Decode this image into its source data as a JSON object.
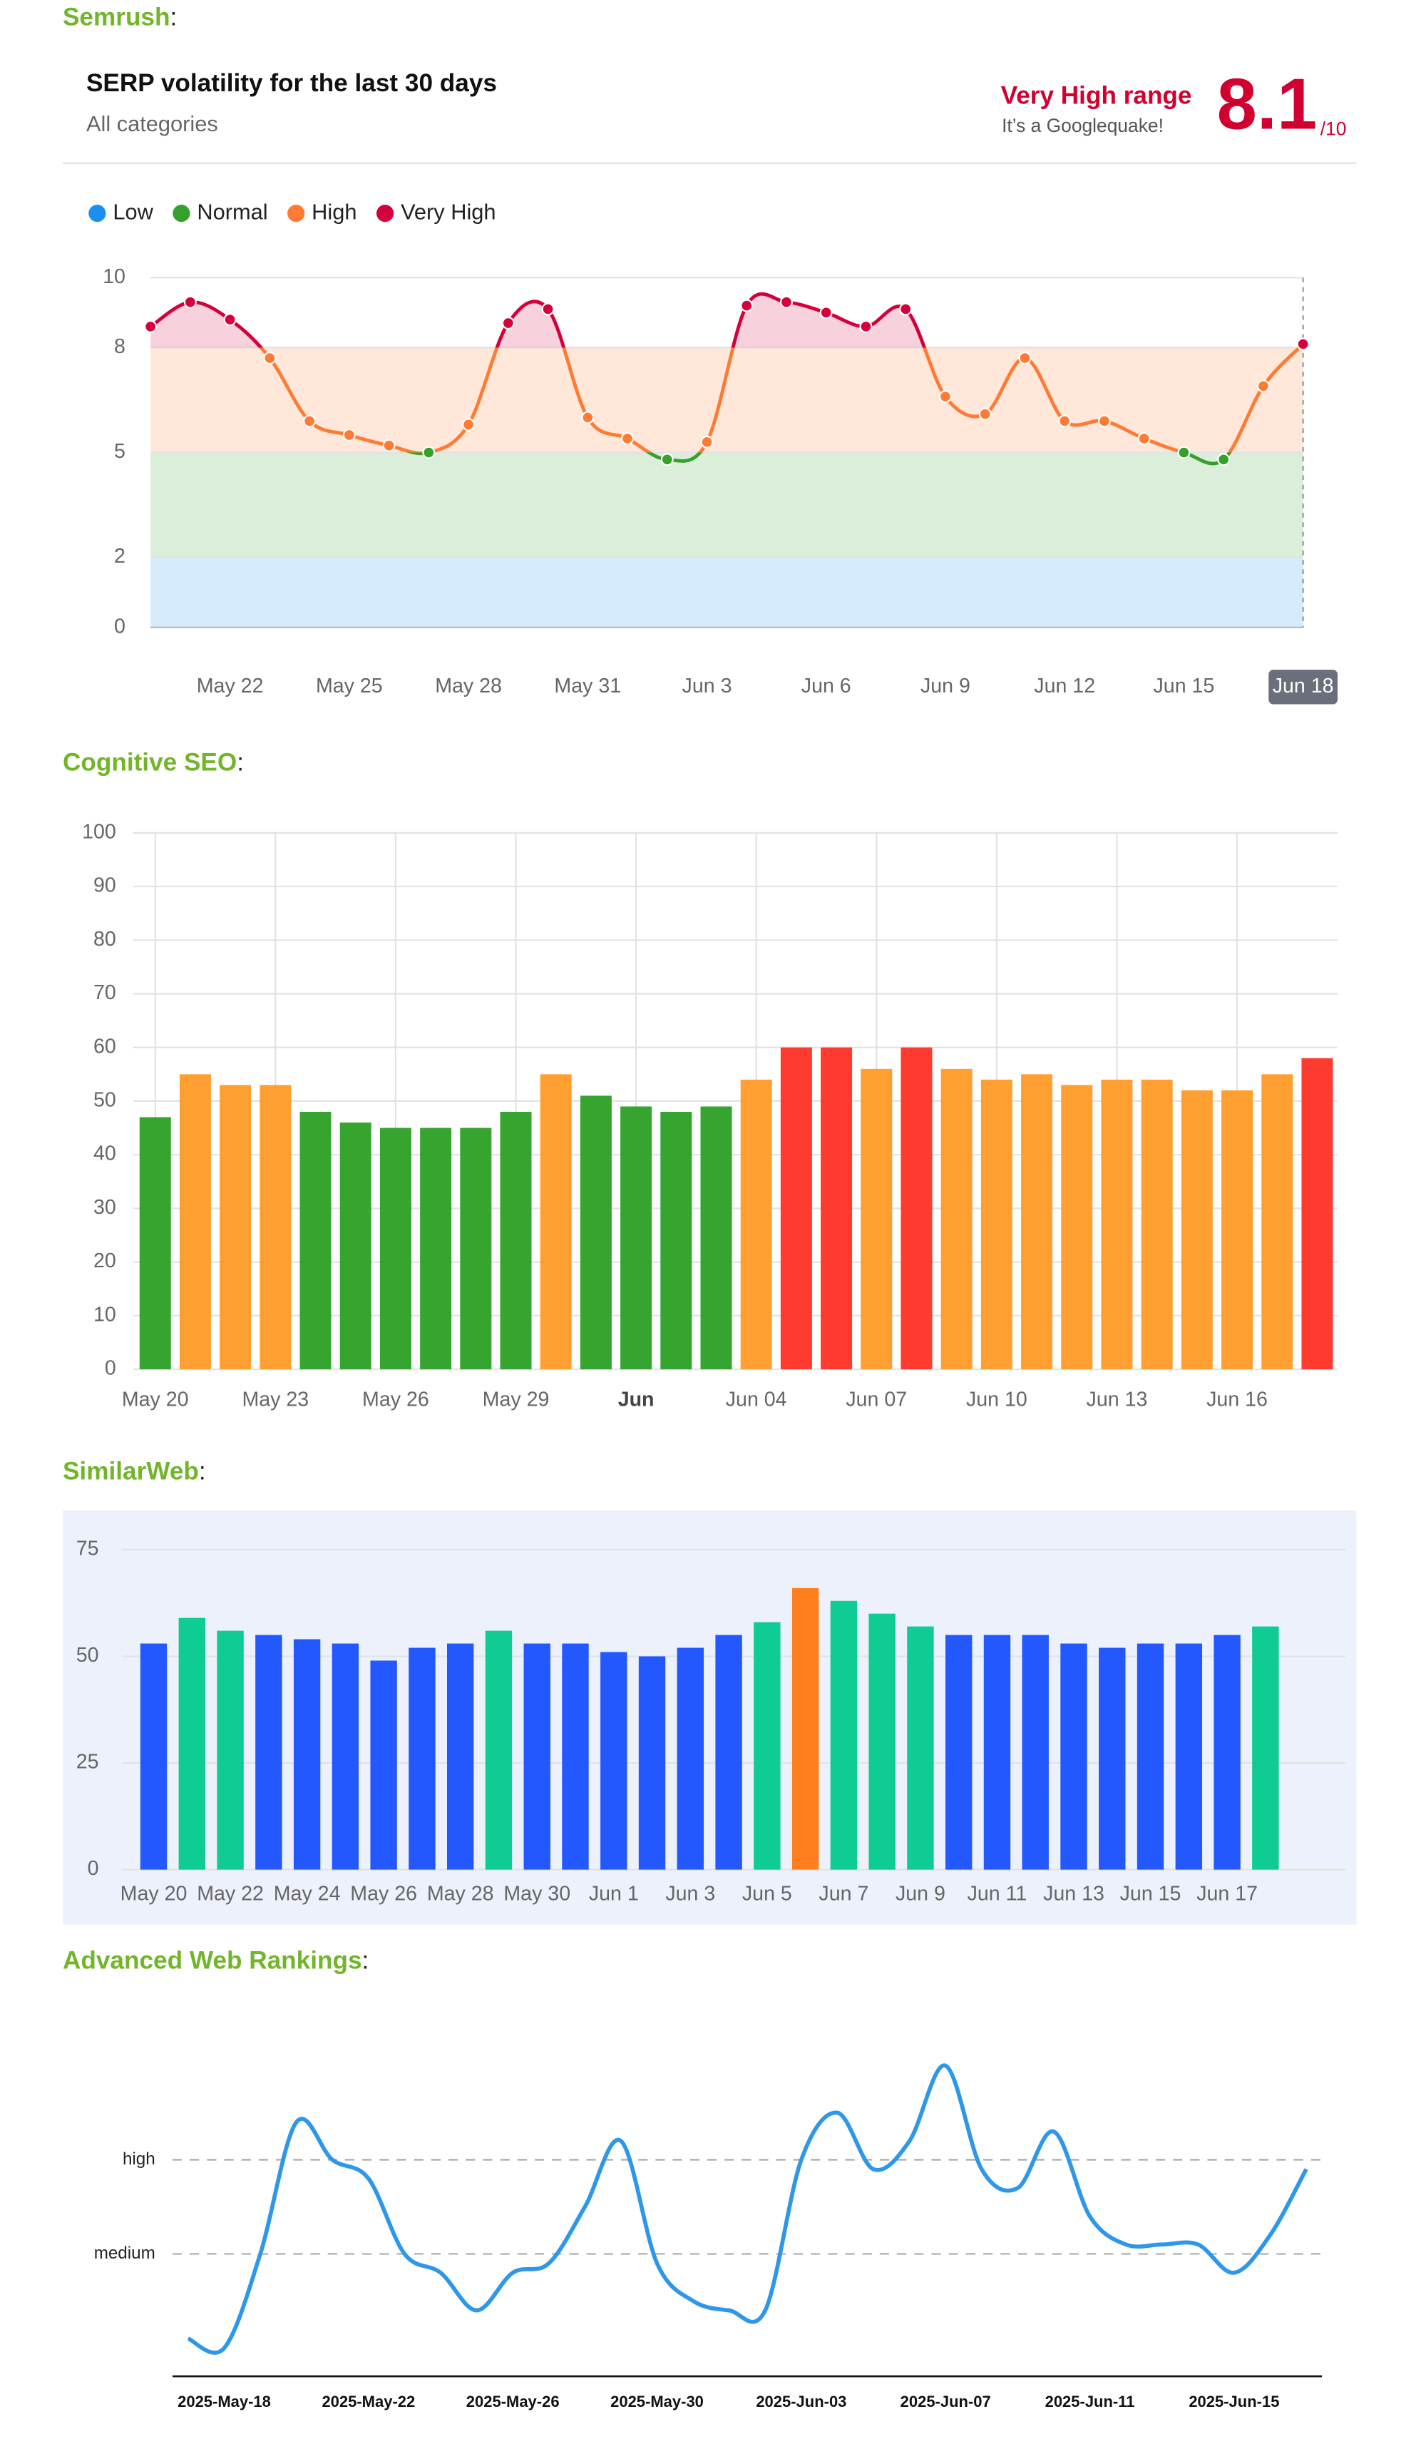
{
  "chart_data": [
    {
      "type": "line",
      "heading": "Semrush",
      "heading_suffix": ":",
      "title": "SERP volatility for the last 30 days",
      "subtitle": "All categories",
      "range_label": "Very High range",
      "range_note": "It’s a Googlequake!",
      "score": 8.1,
      "score_suffix": "/10",
      "ranges": [
        {
          "name": "Low",
          "color": "#1a8ff0",
          "from": 0,
          "to": 2
        },
        {
          "name": "Normal",
          "color": "#35a02c",
          "from": 2,
          "to": 5
        },
        {
          "name": "High",
          "color": "#ff7a33",
          "from": 5,
          "to": 8
        },
        {
          "name": "Very High",
          "color": "#d5003b",
          "from": 8,
          "to": 10
        }
      ],
      "categories": [
        null,
        null,
        "May 22",
        null,
        null,
        "May 25",
        null,
        null,
        "May 28",
        null,
        null,
        "May 31",
        null,
        null,
        "Jun 3",
        null,
        null,
        "Jun 6",
        null,
        null,
        "Jun 9",
        null,
        null,
        "Jun 12",
        null,
        null,
        "Jun 15",
        null,
        null,
        "Jun 18"
      ],
      "values": [
        8.6,
        9.3,
        8.8,
        7.7,
        5.9,
        5.5,
        5.2,
        5.0,
        5.8,
        8.7,
        9.1,
        6.0,
        5.4,
        4.8,
        5.3,
        9.2,
        9.3,
        9.0,
        8.6,
        9.1,
        6.6,
        6.1,
        7.7,
        5.9,
        5.9,
        5.4,
        5.0,
        4.8,
        6.9,
        8.1
      ],
      "highlight_index": 29,
      "ylim": [
        0,
        10
      ],
      "yticks": [
        0,
        2,
        5,
        8,
        10
      ],
      "grid": true
    },
    {
      "type": "bar",
      "heading": "Cognitive SEO",
      "heading_suffix": ":",
      "categories": [
        "May 20",
        null,
        null,
        "May 23",
        null,
        null,
        "May 26",
        null,
        null,
        "May 29",
        null,
        null,
        "Jun",
        null,
        null,
        "Jun 04",
        null,
        null,
        "Jun 07",
        null,
        null,
        "Jun 10",
        null,
        null,
        "Jun 13",
        null,
        null,
        "Jun 16",
        null,
        null
      ],
      "emphasis_index": 12,
      "values": [
        47,
        55,
        53,
        53,
        48,
        46,
        45,
        45,
        45,
        48,
        55,
        51,
        49,
        48,
        49,
        54,
        60,
        60,
        56,
        60,
        56,
        54,
        55,
        53,
        54,
        54,
        52,
        52,
        55,
        58
      ],
      "colors": [
        "#36a530",
        "#ff9f31",
        "#ff9f31",
        "#ff9f31",
        "#36a530",
        "#36a530",
        "#36a530",
        "#36a530",
        "#36a530",
        "#36a530",
        "#ff9f31",
        "#36a530",
        "#36a530",
        "#36a530",
        "#36a530",
        "#ff9f31",
        "#ff3b30",
        "#ff3b30",
        "#ff9f31",
        "#ff3b30",
        "#ff9f31",
        "#ff9f31",
        "#ff9f31",
        "#ff9f31",
        "#ff9f31",
        "#ff9f31",
        "#ff9f31",
        "#ff9f31",
        "#ff9f31",
        "#ff3b30"
      ],
      "ylim": [
        0,
        100
      ],
      "yticks": [
        0,
        10,
        20,
        30,
        40,
        50,
        60,
        70,
        80,
        90,
        100
      ],
      "grid": true
    },
    {
      "type": "bar",
      "heading": "SimilarWeb",
      "heading_suffix": ":",
      "background": "#edf1fb",
      "categories": [
        "May 20",
        null,
        "May 22",
        null,
        "May 24",
        null,
        "May 26",
        null,
        "May 28",
        null,
        "May 30",
        null,
        "Jun 1",
        null,
        "Jun 3",
        null,
        "Jun 5",
        null,
        "Jun 7",
        null,
        "Jun 9",
        null,
        "Jun 11",
        null,
        "Jun 13",
        null,
        "Jun 15",
        null,
        "Jun 17",
        null
      ],
      "values": [
        53,
        59,
        56,
        55,
        54,
        53,
        49,
        52,
        53,
        56,
        53,
        53,
        51,
        50,
        52,
        55,
        58,
        66,
        63,
        60,
        57,
        55,
        55,
        55,
        53,
        52,
        53,
        53,
        55,
        57
      ],
      "colors": [
        "#2458ff",
        "#0fcb94",
        "#0fcb94",
        "#2458ff",
        "#2458ff",
        "#2458ff",
        "#2458ff",
        "#2458ff",
        "#2458ff",
        "#0fcb94",
        "#2458ff",
        "#2458ff",
        "#2458ff",
        "#2458ff",
        "#2458ff",
        "#2458ff",
        "#0fcb94",
        "#ff7f1e",
        "#0fcb94",
        "#0fcb94",
        "#0fcb94",
        "#2458ff",
        "#2458ff",
        "#2458ff",
        "#2458ff",
        "#2458ff",
        "#2458ff",
        "#2458ff",
        "#2458ff",
        "#0fcb94"
      ],
      "ylim": [
        0,
        75
      ],
      "yticks": [
        0,
        25,
        50,
        75
      ],
      "grid": true
    },
    {
      "type": "line",
      "heading": "Advanced Web Rankings",
      "heading_suffix": ":",
      "color": "#2f97e8",
      "categories": [
        null,
        "2025-May-18",
        null,
        null,
        null,
        "2025-May-22",
        null,
        null,
        null,
        "2025-May-26",
        null,
        null,
        null,
        "2025-May-30",
        null,
        null,
        null,
        "2025-Jun-03",
        null,
        null,
        null,
        "2025-Jun-07",
        null,
        null,
        null,
        "2025-Jun-11",
        null,
        null,
        null,
        "2025-Jun-15",
        null,
        null
      ],
      "values": [
        0.1,
        0.0,
        1.0,
        2.4,
        2.0,
        1.8,
        1.0,
        0.8,
        0.4,
        0.8,
        0.9,
        1.5,
        2.2,
        0.9,
        0.5,
        0.4,
        0.4,
        2.0,
        2.5,
        1.9,
        2.2,
        3.0,
        1.9,
        1.7,
        2.3,
        1.4,
        1.1,
        1.1,
        1.1,
        0.8,
        1.2,
        1.9
      ],
      "ylim": [
        -0.3,
        3.4
      ],
      "yticks": [
        {
          "value": 1,
          "label": "medium"
        },
        {
          "value": 2,
          "label": "high"
        }
      ],
      "grid": true
    }
  ]
}
